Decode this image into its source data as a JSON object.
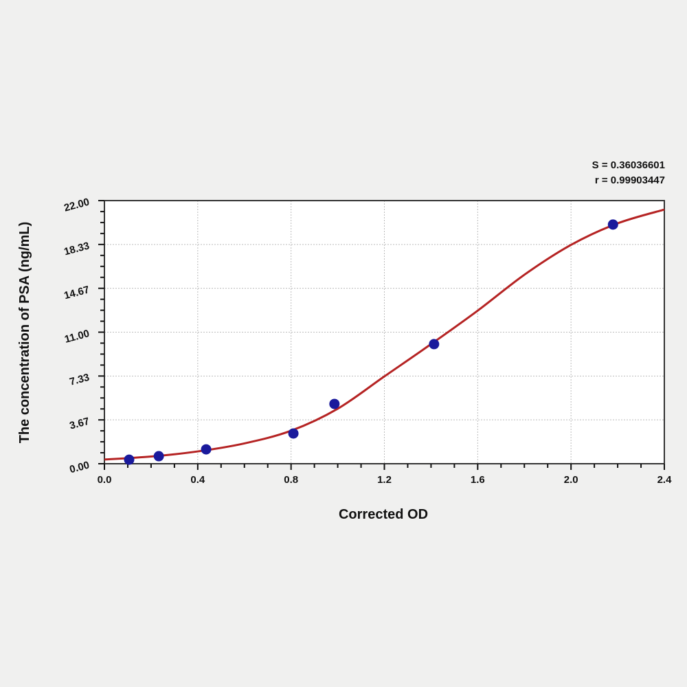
{
  "chart_data": {
    "type": "scatter",
    "title": "",
    "xlabel": "Corrected OD",
    "ylabel": "The concentration of PSA (ng/mL)",
    "xlim": [
      0,
      2.4
    ],
    "ylim": [
      0,
      22
    ],
    "xticks": [
      "0.0",
      "0.4",
      "0.8",
      "1.2",
      "1.6",
      "2.0",
      "2.4"
    ],
    "yticks": [
      "0.00",
      "3.67",
      "7.33",
      "11.00",
      "14.67",
      "18.33",
      "22.00"
    ],
    "grid": true,
    "annotations": [
      "S = 0.36036601",
      "r = 0.99903447"
    ],
    "points": {
      "x": [
        0.106,
        0.233,
        0.436,
        0.81,
        0.986,
        1.413,
        2.18
      ],
      "y": [
        0.34,
        0.63,
        1.2,
        2.53,
        5.0,
        10.0,
        20.0
      ]
    },
    "fit_curve": {
      "x": [
        0.0,
        0.2,
        0.4,
        0.6,
        0.8,
        1.0,
        1.2,
        1.4,
        1.6,
        1.8,
        2.0,
        2.2,
        2.4
      ],
      "y": [
        0.35,
        0.6,
        1.03,
        1.7,
        2.76,
        4.6,
        7.3,
        10.0,
        12.8,
        15.8,
        18.3,
        20.1,
        21.25
      ]
    },
    "colors": {
      "points": "#1a1a9c",
      "curve": "#b52323"
    }
  }
}
